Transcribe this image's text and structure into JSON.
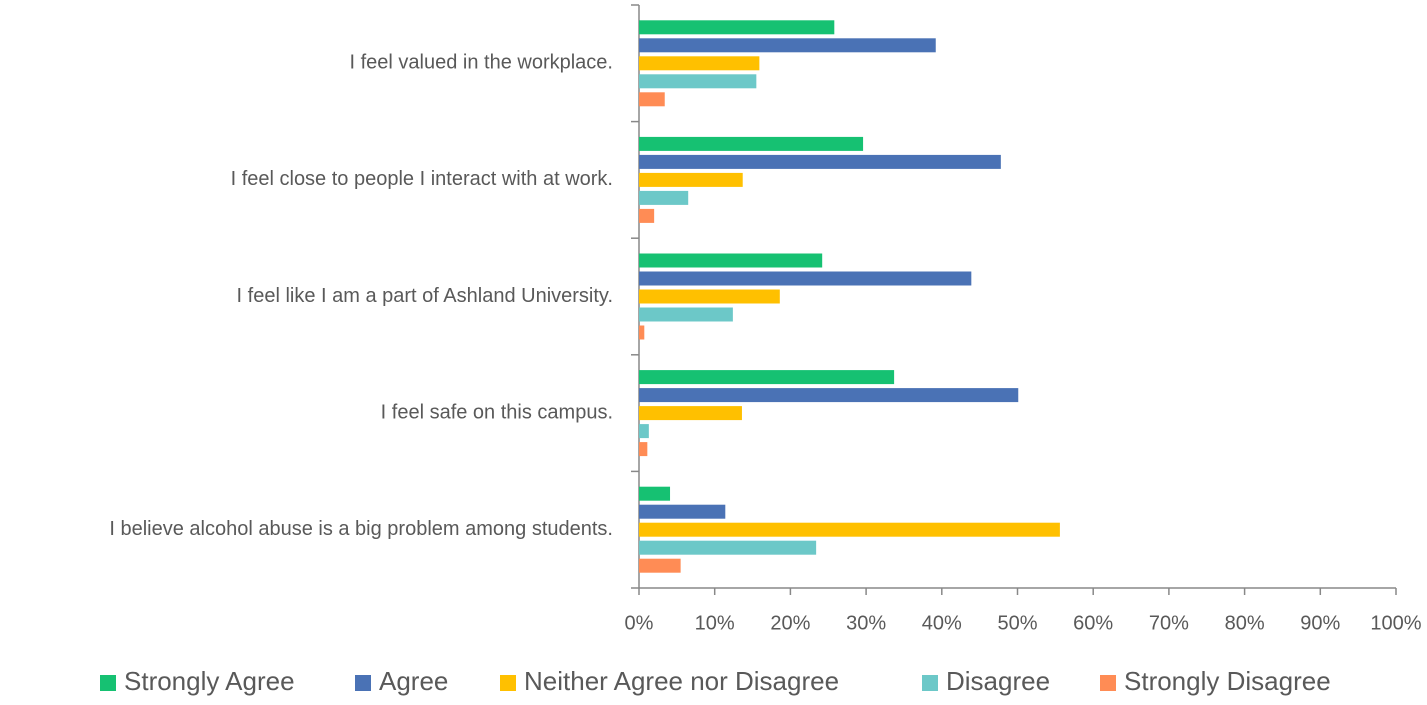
{
  "chart_data": {
    "type": "hbar",
    "categories": [
      "I feel valued in the workplace.",
      "I feel close to people I interact with at work.",
      "I feel like I am a part of Ashland University.",
      "I feel safe on this campus.",
      "I believe alcohol abuse is a big problem among students."
    ],
    "series": [
      {
        "name": "Strongly Agree",
        "color": "#16c172",
        "values": [
          25.8,
          29.6,
          24.2,
          33.7,
          4.1
        ]
      },
      {
        "name": "Agree",
        "color": "#4a72b5",
        "values": [
          39.2,
          47.8,
          43.9,
          50.1,
          11.4
        ]
      },
      {
        "name": "Neither Agree nor Disagree",
        "color": "#ffc000",
        "values": [
          15.9,
          13.7,
          18.6,
          13.6,
          55.6
        ]
      },
      {
        "name": "Disagree",
        "color": "#6cc8c8",
        "values": [
          15.5,
          6.5,
          12.4,
          1.3,
          23.4
        ]
      },
      {
        "name": "Strongly Disagree",
        "color": "#ff8c55",
        "values": [
          3.4,
          2.0,
          0.7,
          1.1,
          5.5
        ]
      }
    ],
    "xlim": [
      0,
      100
    ],
    "xticks": [
      {
        "value": 0,
        "label": "0%"
      },
      {
        "value": 10,
        "label": "10%"
      },
      {
        "value": 20,
        "label": "20%"
      },
      {
        "value": 30,
        "label": "30%"
      },
      {
        "value": 40,
        "label": "40%"
      },
      {
        "value": 50,
        "label": "50%"
      },
      {
        "value": 60,
        "label": "60%"
      },
      {
        "value": 70,
        "label": "70%"
      },
      {
        "value": 80,
        "label": "80%"
      },
      {
        "value": 90,
        "label": "90%"
      },
      {
        "value": 100,
        "label": "100%"
      }
    ],
    "legend": "bottom"
  }
}
